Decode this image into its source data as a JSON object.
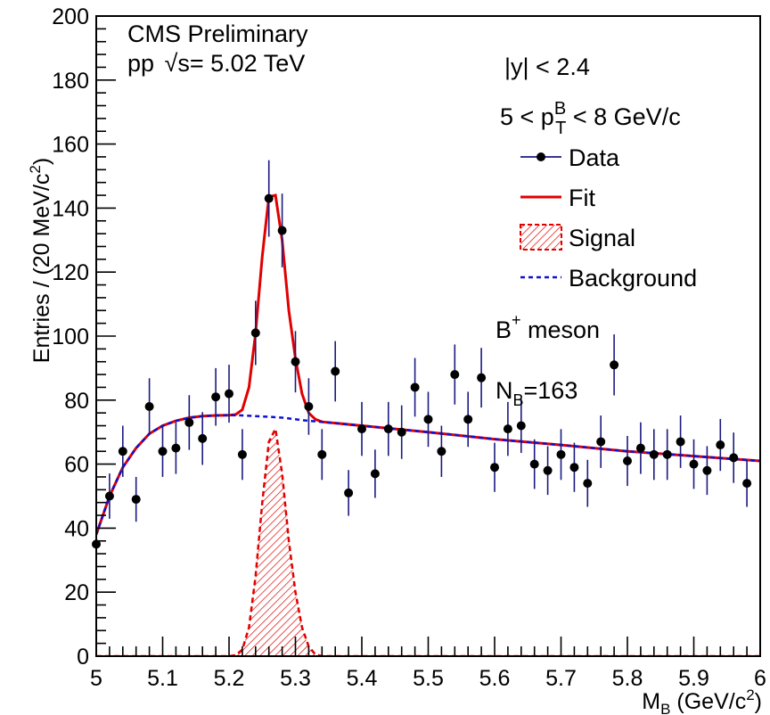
{
  "chart_data": {
    "type": "scatter",
    "xlim": [
      5.0,
      6.0
    ],
    "ylim": [
      0,
      200
    ],
    "xlabel": "M_B (GeV/c^2)",
    "ylabel": "Entries / (20 MeV/c^2)",
    "x_ticks": [
      "5",
      "5.1",
      "5.2",
      "5.3",
      "5.4",
      "5.5",
      "5.6",
      "5.7",
      "5.8",
      "5.9",
      "6"
    ],
    "y_ticks": [
      "0",
      "20",
      "40",
      "60",
      "80",
      "100",
      "120",
      "140",
      "160",
      "180",
      "200"
    ],
    "header_line1": "CMS Preliminary",
    "header_line2": "pp √s= 5.02 TeV",
    "cut_y": "|y| < 2.4",
    "cut_pt": "5 < p_T^B < 8 GeV/c",
    "meson": "B+ meson",
    "yield": "N_B=163",
    "legend": [
      {
        "label": "Data",
        "style": "marker",
        "color": "#1a1a80"
      },
      {
        "label": "Fit",
        "style": "line",
        "color": "#e00000"
      },
      {
        "label": "Signal",
        "style": "hatched",
        "color": "#e00000"
      },
      {
        "label": "Background",
        "style": "dashed",
        "color": "#1010d0"
      }
    ],
    "legend_placement": "top-right",
    "grid": false,
    "colors": {
      "data": "#000000",
      "error_bar": "#1a1a80",
      "fit": "#e00000",
      "signal": "#e00000",
      "background": "#1010d0"
    },
    "series": [
      {
        "name": "Data",
        "x": [
          5.0,
          5.02,
          5.04,
          5.06,
          5.08,
          5.1,
          5.12,
          5.14,
          5.16,
          5.18,
          5.2,
          5.22,
          5.24,
          5.26,
          5.28,
          5.3,
          5.32,
          5.34,
          5.36,
          5.38,
          5.4,
          5.42,
          5.44,
          5.46,
          5.48,
          5.5,
          5.52,
          5.54,
          5.56,
          5.58,
          5.6,
          5.62,
          5.64,
          5.66,
          5.68,
          5.7,
          5.72,
          5.74,
          5.76,
          5.78,
          5.8,
          5.82,
          5.84,
          5.86,
          5.88,
          5.9,
          5.92,
          5.94,
          5.96,
          5.98
        ],
        "y": [
          35,
          50,
          64,
          49,
          78,
          64,
          65,
          73,
          68,
          81,
          82,
          63,
          101,
          143,
          133,
          92,
          78,
          63,
          89,
          51,
          71,
          57,
          71,
          70,
          84,
          74,
          64,
          88,
          74,
          87,
          59,
          71,
          72,
          60,
          58,
          63,
          59,
          54,
          67,
          91,
          61,
          65,
          63,
          63,
          67,
          60,
          58,
          66,
          62,
          54
        ]
      },
      {
        "name": "Fit",
        "x": [
          5.0,
          5.02,
          5.04,
          5.06,
          5.08,
          5.1,
          5.12,
          5.14,
          5.16,
          5.18,
          5.2,
          5.21,
          5.22,
          5.23,
          5.24,
          5.25,
          5.26,
          5.27,
          5.28,
          5.29,
          5.3,
          5.31,
          5.32,
          5.33,
          5.34,
          5.36,
          5.4,
          5.5,
          5.6,
          5.7,
          5.8,
          5.9,
          6.0
        ],
        "y": [
          38,
          50,
          59,
          65,
          69.5,
          72,
          73.5,
          74.5,
          75,
          75.2,
          75.3,
          75.5,
          77,
          84,
          101,
          125,
          143.5,
          144,
          130,
          108,
          93,
          82,
          76,
          74,
          73.2,
          72.8,
          72,
          70,
          67.8,
          66,
          64,
          62.5,
          61
        ]
      },
      {
        "name": "Signal",
        "x": [
          5.2,
          5.21,
          5.22,
          5.23,
          5.24,
          5.25,
          5.26,
          5.27,
          5.28,
          5.29,
          5.3,
          5.31,
          5.32,
          5.33,
          5.34
        ],
        "y": [
          0,
          0.3,
          2,
          9,
          25,
          48,
          67,
          71,
          57,
          36,
          20,
          9,
          3,
          0.5,
          0
        ]
      },
      {
        "name": "Background",
        "x": [
          5.0,
          5.02,
          5.04,
          5.06,
          5.08,
          5.1,
          5.12,
          5.14,
          5.16,
          5.18,
          5.2,
          5.22,
          5.24,
          5.26,
          5.28,
          5.3,
          5.32,
          5.34,
          5.4,
          5.5,
          5.6,
          5.7,
          5.8,
          5.9,
          6.0
        ],
        "y": [
          38,
          50,
          59,
          65,
          69.5,
          72,
          73.5,
          74.5,
          75,
          75.2,
          75.3,
          75.2,
          75,
          74.8,
          74.5,
          74,
          73.5,
          73.2,
          72,
          70,
          67.8,
          66,
          64,
          62.5,
          61
        ]
      }
    ]
  }
}
